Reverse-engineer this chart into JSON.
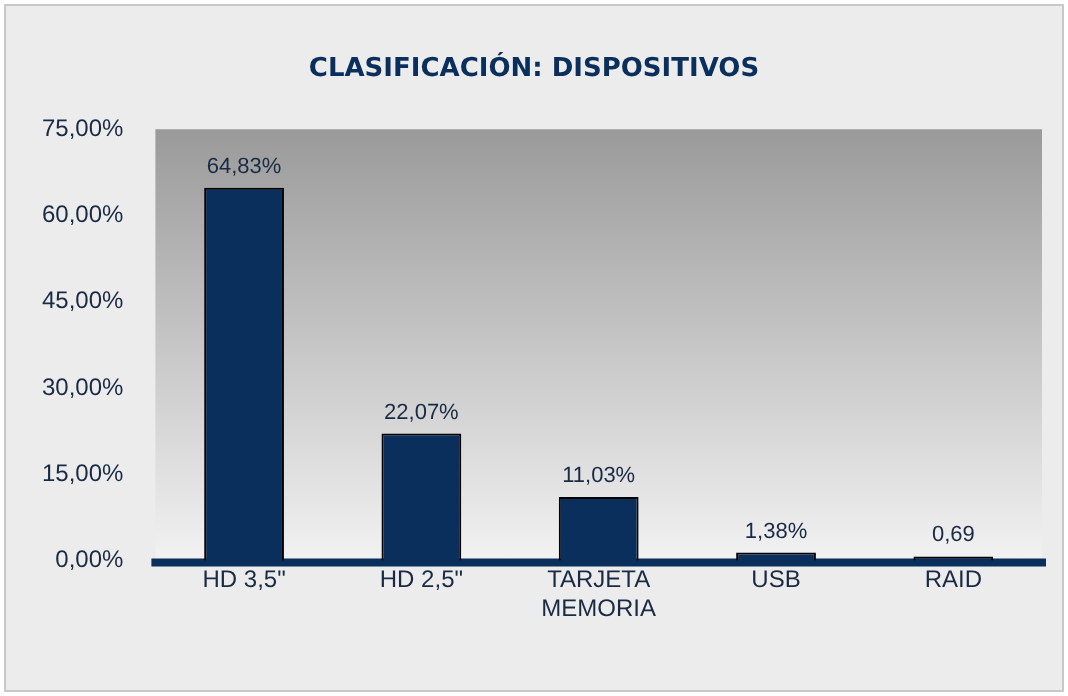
{
  "chart_data": {
    "type": "bar",
    "title": "CLASIFICACIÓN: DISPOSITIVOS",
    "categories": [
      "HD 3,5\"",
      "HD 2,5\"",
      "TARJETA MEMORIA",
      "USB",
      "RAID"
    ],
    "values": [
      64.83,
      22.07,
      11.03,
      1.38,
      0.69
    ],
    "value_labels": [
      "64,83%",
      "22,07%",
      "11,03%",
      "1,38%",
      "0,69"
    ],
    "color": "#0a2f5c",
    "ylim": [
      0,
      75
    ],
    "yticks": [
      {
        "value": 0,
        "label": "0,00%"
      },
      {
        "value": 15,
        "label": "15,00%"
      },
      {
        "value": 30,
        "label": "30,00%"
      },
      {
        "value": 45,
        "label": "45,00%"
      },
      {
        "value": 60,
        "label": "60,00%"
      },
      {
        "value": 75,
        "label": "75,00%"
      }
    ],
    "grid": false
  }
}
